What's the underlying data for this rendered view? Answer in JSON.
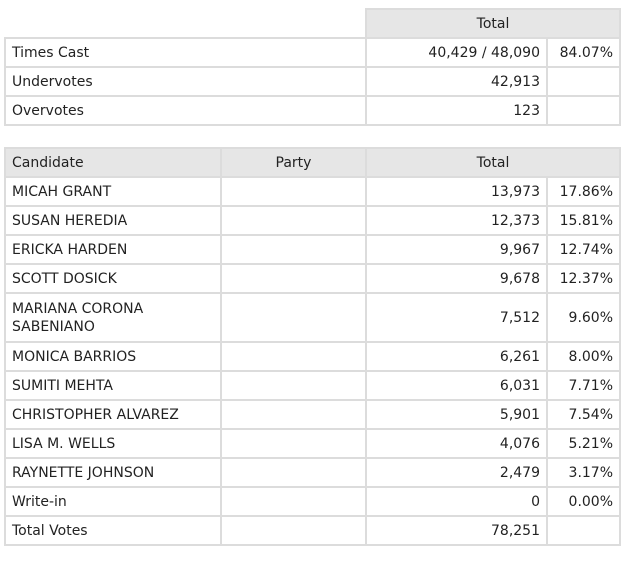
{
  "summary": {
    "header_total": "Total",
    "rows": [
      {
        "label": "Times Cast",
        "total": "40,429 / 48,090",
        "percent": "84.07%"
      },
      {
        "label": "Undervotes",
        "total": "42,913",
        "percent": ""
      },
      {
        "label": "Overvotes",
        "total": "123",
        "percent": ""
      }
    ]
  },
  "results": {
    "headers": {
      "candidate": "Candidate",
      "party": "Party",
      "total": "Total"
    },
    "rows": [
      {
        "candidate": "MICAH GRANT",
        "party": "",
        "total": "13,973",
        "percent": "17.86%"
      },
      {
        "candidate": "SUSAN HEREDIA",
        "party": "",
        "total": "12,373",
        "percent": "15.81%"
      },
      {
        "candidate": "ERICKA HARDEN",
        "party": "",
        "total": "9,967",
        "percent": "12.74%"
      },
      {
        "candidate": "SCOTT DOSICK",
        "party": "",
        "total": "9,678",
        "percent": "12.37%"
      },
      {
        "candidate": "MARIANA CORONA SABENIANO",
        "party": "",
        "total": "7,512",
        "percent": "9.60%"
      },
      {
        "candidate": "MONICA BARRIOS",
        "party": "",
        "total": "6,261",
        "percent": "8.00%"
      },
      {
        "candidate": "SUMITI MEHTA",
        "party": "",
        "total": "6,031",
        "percent": "7.71%"
      },
      {
        "candidate": "CHRISTOPHER ALVAREZ",
        "party": "",
        "total": "5,901",
        "percent": "7.54%"
      },
      {
        "candidate": "LISA M. WELLS",
        "party": "",
        "total": "4,076",
        "percent": "5.21%"
      },
      {
        "candidate": "RAYNETTE JOHNSON",
        "party": "",
        "total": "2,479",
        "percent": "3.17%"
      },
      {
        "candidate": "Write-in",
        "party": "",
        "total": "0",
        "percent": "0.00%"
      }
    ],
    "footer": {
      "label": "Total Votes",
      "total": "78,251",
      "percent": ""
    }
  }
}
